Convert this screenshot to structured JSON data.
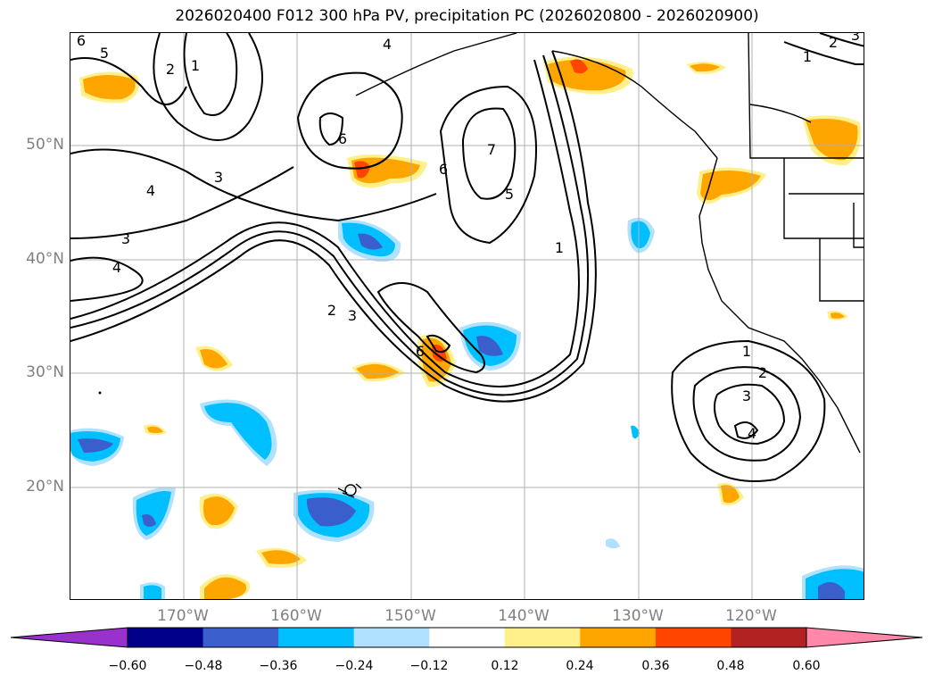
{
  "title": "2026020400 F012 300 hPa PV, precipitation PC (2026020800 - 2026020900)",
  "map": {
    "lat_ticks": [
      "50°N",
      "40°N",
      "30°N",
      "20°N"
    ],
    "lon_ticks": [
      "170°W",
      "160°W",
      "150°W",
      "140°W",
      "130°W",
      "120°W"
    ],
    "grid": true
  },
  "contour_labels": [
    "6",
    "5",
    "2",
    "1",
    "4",
    "6",
    "3",
    "4",
    "3",
    "4",
    "7",
    "6",
    "5",
    "1",
    "2",
    "3",
    "6",
    "1",
    "2",
    "3",
    "4",
    "2",
    "1",
    "3"
  ],
  "colorbar": {
    "ticks": [
      "−0.60",
      "−0.48",
      "−0.36",
      "−0.24",
      "−0.12",
      "0.12",
      "0.24",
      "0.36",
      "0.48",
      "0.60"
    ],
    "colors": [
      "#9932cc",
      "#00008b",
      "#3a5fcd",
      "#00bfff",
      "#b0e2ff",
      "#ffffff",
      "#fff08c",
      "#ffa500",
      "#ff4500",
      "#b22222",
      "#ff88aa"
    ]
  }
}
